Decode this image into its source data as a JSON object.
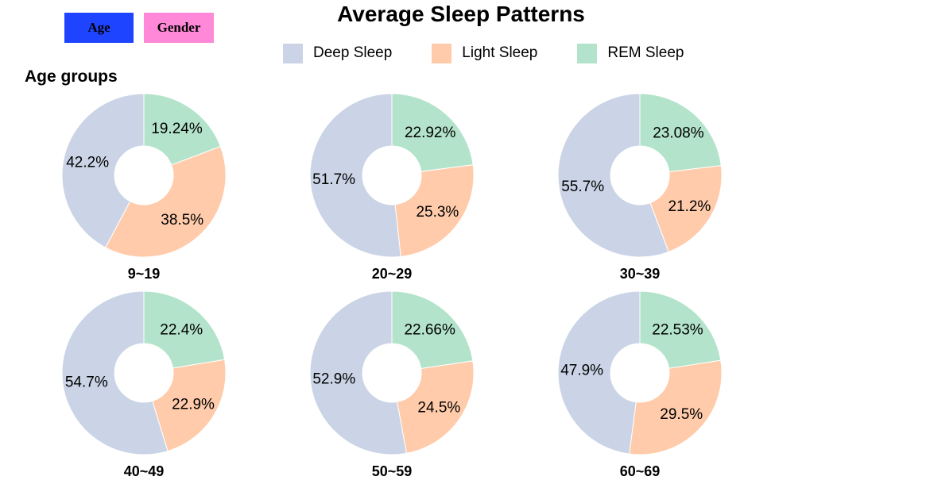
{
  "buttons": {
    "age": {
      "label": "Age",
      "color": "#1f44ff"
    },
    "gender": {
      "label": "Gender",
      "color": "#ff88d8"
    }
  },
  "title": "Average Sleep Patterns",
  "section_title": "Age groups",
  "legend": [
    {
      "label": "Deep Sleep",
      "color": "#cad4e6"
    },
    {
      "label": "Light Sleep",
      "color": "#ffcbaa"
    },
    {
      "label": "REM Sleep",
      "color": "#b3e3ca"
    }
  ],
  "chart_data": [
    {
      "type": "pie",
      "title": "9~19",
      "slices": [
        {
          "name": "REM Sleep",
          "value": 19.24,
          "label": "19.24%"
        },
        {
          "name": "Light Sleep",
          "value": 38.5,
          "label": "38.5%"
        },
        {
          "name": "Deep Sleep",
          "value": 42.2,
          "label": "42.2%"
        }
      ]
    },
    {
      "type": "pie",
      "title": "20~29",
      "slices": [
        {
          "name": "REM Sleep",
          "value": 22.92,
          "label": "22.92%"
        },
        {
          "name": "Light Sleep",
          "value": 25.3,
          "label": "25.3%"
        },
        {
          "name": "Deep Sleep",
          "value": 51.7,
          "label": "51.7%"
        }
      ]
    },
    {
      "type": "pie",
      "title": "30~39",
      "slices": [
        {
          "name": "REM Sleep",
          "value": 23.08,
          "label": "23.08%"
        },
        {
          "name": "Light Sleep",
          "value": 21.2,
          "label": "21.2%"
        },
        {
          "name": "Deep Sleep",
          "value": 55.7,
          "label": "55.7%"
        }
      ]
    },
    {
      "type": "pie",
      "title": "40~49",
      "slices": [
        {
          "name": "REM Sleep",
          "value": 22.4,
          "label": "22.4%"
        },
        {
          "name": "Light Sleep",
          "value": 22.9,
          "label": "22.9%"
        },
        {
          "name": "Deep Sleep",
          "value": 54.7,
          "label": "54.7%"
        }
      ]
    },
    {
      "type": "pie",
      "title": "50~59",
      "slices": [
        {
          "name": "REM Sleep",
          "value": 22.66,
          "label": "22.66%"
        },
        {
          "name": "Light Sleep",
          "value": 24.5,
          "label": "24.5%"
        },
        {
          "name": "Deep Sleep",
          "value": 52.9,
          "label": "52.9%"
        }
      ]
    },
    {
      "type": "pie",
      "title": "60~69",
      "slices": [
        {
          "name": "REM Sleep",
          "value": 22.53,
          "label": "22.53%"
        },
        {
          "name": "Light Sleep",
          "value": 29.5,
          "label": "29.5%"
        },
        {
          "name": "Deep Sleep",
          "value": 47.9,
          "label": "47.9%"
        }
      ]
    }
  ]
}
